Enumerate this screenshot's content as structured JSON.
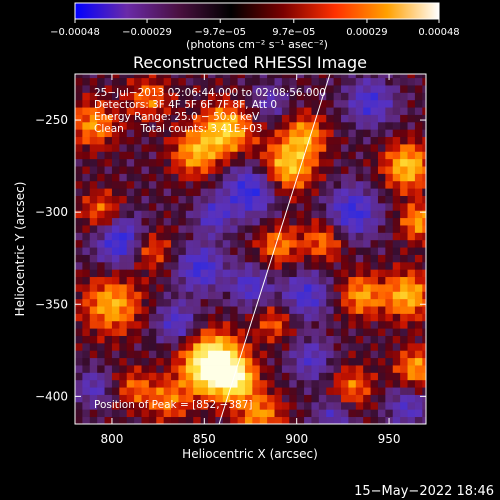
{
  "chart_data": {
    "type": "heatmap",
    "title": "Reconstructed RHESSI Image",
    "xlabel": "Heliocentric X (arcsec)",
    "ylabel": "Heliocentric Y (arcsec)",
    "xlim": [
      780,
      970
    ],
    "ylim": [
      -415,
      -225
    ],
    "x_ticks": [
      800,
      850,
      900,
      950
    ],
    "y_ticks": [
      -250,
      -300,
      -350,
      -400
    ],
    "x_tick_labels": [
      "800",
      "850",
      "900",
      "950"
    ],
    "y_tick_labels": [
      "−250",
      "−300",
      "−350",
      "−400"
    ],
    "colorbar": {
      "range": [
        -0.00048,
        0.00048
      ],
      "tick_values": [
        -0.00048,
        -0.00029,
        -9.7e-05,
        9.7e-05,
        0.00029,
        0.00048
      ],
      "tick_labels": [
        "−0.00048",
        "−0.00029",
        "−9.7e−05",
        "9.7e−05",
        "0.00029",
        "0.00048"
      ],
      "unit_label": "(photons cm⁻² s⁻¹ asec⁻²)",
      "colors": [
        "#0000ff",
        "#6a2aa8",
        "#4a1040",
        "#000000",
        "#7a0000",
        "#ff3000",
        "#ffa000",
        "#ffffff"
      ]
    },
    "limb_line": {
      "x": [
        858,
        918
      ],
      "y": [
        -415,
        -225
      ]
    },
    "annotations": [
      "25−Jul−2013 02:06:44.000 to 02:08:56.000",
      "Detectors: 3F 4F 5F 6F 7F 8F, Att 0",
      "Energy Range: 25.0 − 50.0 keV",
      "Clean     Total counts: 3.41E+03",
      "Position of Peak = [852,−387]"
    ],
    "timestamp": "15−May−2022 18:46",
    "blobs": [
      {
        "x": 855,
        "y": -383,
        "s": 11,
        "a": 3.0
      },
      {
        "x": 868,
        "y": -391,
        "s": 7,
        "a": 1.4
      },
      {
        "x": 862,
        "y": -255,
        "s": 10,
        "a": 1.6
      },
      {
        "x": 845,
        "y": -268,
        "s": 9,
        "a": 1.3
      },
      {
        "x": 895,
        "y": -275,
        "s": 10,
        "a": 1.6
      },
      {
        "x": 905,
        "y": -258,
        "s": 8,
        "a": 1.2
      },
      {
        "x": 960,
        "y": -275,
        "s": 9,
        "a": 1.6
      },
      {
        "x": 966,
        "y": -305,
        "s": 7,
        "a": 1.3
      },
      {
        "x": 960,
        "y": -345,
        "s": 9,
        "a": 1.5
      },
      {
        "x": 935,
        "y": -345,
        "s": 8,
        "a": 1.3
      },
      {
        "x": 965,
        "y": -385,
        "s": 8,
        "a": 1.3
      },
      {
        "x": 800,
        "y": -350,
        "s": 11,
        "a": 1.4
      },
      {
        "x": 820,
        "y": -320,
        "s": 8,
        "a": 1.1
      },
      {
        "x": 795,
        "y": -300,
        "s": 8,
        "a": 1.1
      },
      {
        "x": 790,
        "y": -252,
        "s": 9,
        "a": 1.2
      },
      {
        "x": 820,
        "y": -238,
        "s": 8,
        "a": 1.0
      },
      {
        "x": 890,
        "y": -318,
        "s": 8,
        "a": 1.1
      },
      {
        "x": 915,
        "y": -315,
        "s": 8,
        "a": 1.1
      },
      {
        "x": 880,
        "y": -410,
        "s": 9,
        "a": 1.2
      },
      {
        "x": 930,
        "y": -395,
        "s": 8,
        "a": 1.0
      },
      {
        "x": 830,
        "y": -402,
        "s": 8,
        "a": 1.0
      },
      {
        "x": 888,
        "y": -360,
        "s": 7,
        "a": 0.9
      },
      {
        "x": 812,
        "y": -395,
        "s": 7,
        "a": 0.9
      },
      {
        "x": 805,
        "y": -315,
        "s": 10,
        "a": -1.6
      },
      {
        "x": 875,
        "y": -288,
        "s": 10,
        "a": -1.5
      },
      {
        "x": 848,
        "y": -330,
        "s": 9,
        "a": -1.3
      },
      {
        "x": 855,
        "y": -302,
        "s": 7,
        "a": -1.0
      },
      {
        "x": 905,
        "y": -345,
        "s": 9,
        "a": -1.2
      },
      {
        "x": 875,
        "y": -340,
        "s": 8,
        "a": -1.1
      },
      {
        "x": 930,
        "y": -300,
        "s": 10,
        "a": -1.4
      },
      {
        "x": 940,
        "y": -240,
        "s": 9,
        "a": -1.2
      },
      {
        "x": 960,
        "y": -405,
        "s": 8,
        "a": -1.0
      },
      {
        "x": 835,
        "y": -360,
        "s": 8,
        "a": -1.1
      },
      {
        "x": 908,
        "y": -380,
        "s": 8,
        "a": -1.0
      },
      {
        "x": 790,
        "y": -395,
        "s": 7,
        "a": -0.9
      },
      {
        "x": 885,
        "y": -240,
        "s": 7,
        "a": -0.8
      },
      {
        "x": 920,
        "y": -410,
        "s": 7,
        "a": -0.9
      }
    ]
  }
}
